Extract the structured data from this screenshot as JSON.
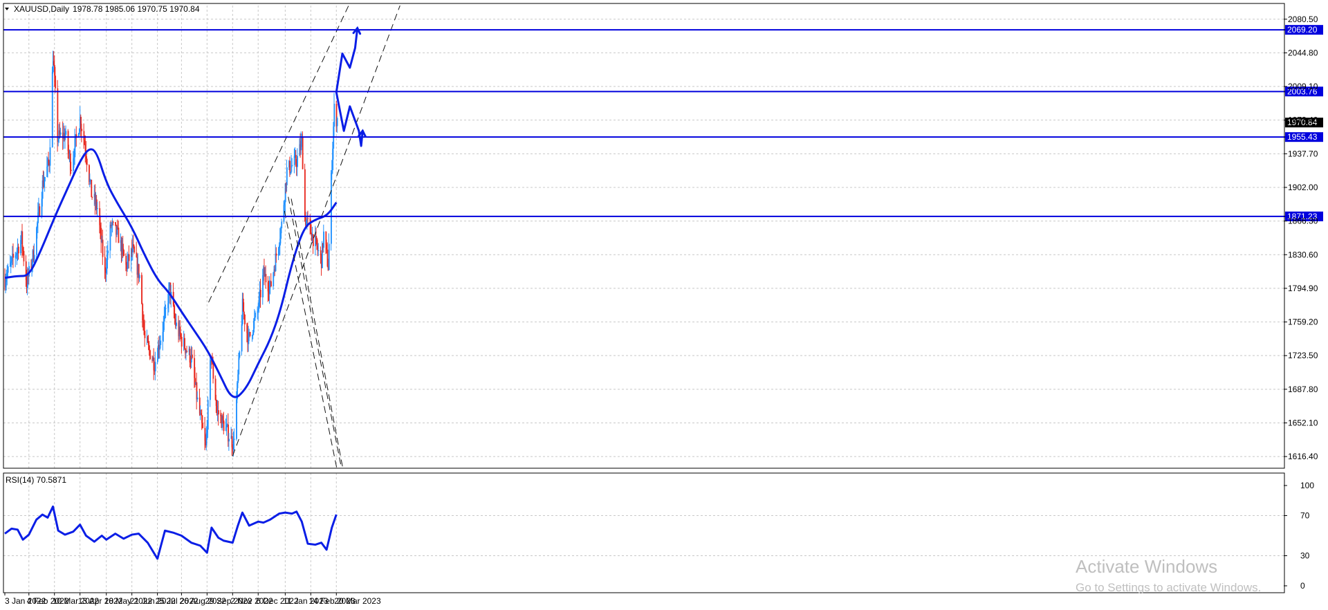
{
  "header": {
    "symbol": "XAUUSD,Daily",
    "ohlc": "1978.78 1985.06 1970.75 1970.84"
  },
  "rsi_header": "RSI(14) 70.5871",
  "watermark": {
    "line1": "Activate Windows",
    "line2": "Go to Settings to activate Windows."
  },
  "colors": {
    "bull": "#1e90ff",
    "bear": "#e8281e",
    "ma": "#0a1ee6",
    "level": "#0000dd",
    "grid": "#c8c8c8"
  },
  "chart_data": [
    {
      "type": "candlestick",
      "title": "XAUUSD,Daily",
      "y_ticks": [
        2080.5,
        2044.8,
        2009.1,
        1973.4,
        1937.7,
        1902.0,
        1866.3,
        1830.6,
        1794.9,
        1759.2,
        1723.5,
        1687.8,
        1652.1,
        1616.4
      ],
      "ylim": [
        1604.0,
        2095.0
      ],
      "x_ticks": [
        "3 Jan 2022",
        "4 Feb 2022",
        "10 Mar 2022",
        "13 Apr 2022",
        "18 May 2022",
        "21 Jun 2022",
        "25 Jul 2022",
        "26 Aug 2022",
        "29 Sep 2022",
        "2 Nov 2022",
        "6 Dec 2022",
        "11 Jan 2023",
        "14 Feb 2023",
        "20 Mar 2023"
      ],
      "x_range": [
        "2022-01-03",
        "2023-05-10"
      ],
      "grid": true,
      "price_levels": [
        {
          "label": "2069.20",
          "value": 2069.2
        },
        {
          "label": "2003.76",
          "value": 2003.76
        },
        {
          "label": "1955.43",
          "value": 1955.43
        },
        {
          "label": "1871.23",
          "value": 1871.23
        }
      ],
      "current_price": {
        "label": "1970.84",
        "value": 1970.84
      },
      "ma_series": [
        [
          "2022-01-03",
          1806
        ],
        [
          "2022-01-20",
          1808
        ],
        [
          "2022-02-04",
          1808
        ],
        [
          "2022-02-20",
          1835
        ],
        [
          "2022-03-10",
          1870
        ],
        [
          "2022-03-28",
          1902
        ],
        [
          "2022-04-13",
          1930
        ],
        [
          "2022-04-25",
          1944
        ],
        [
          "2022-05-05",
          1940
        ],
        [
          "2022-05-18",
          1907
        ],
        [
          "2022-06-01",
          1886
        ],
        [
          "2022-06-21",
          1860
        ],
        [
          "2022-07-08",
          1830
        ],
        [
          "2022-07-25",
          1804
        ],
        [
          "2022-08-10",
          1790
        ],
        [
          "2022-08-26",
          1770
        ],
        [
          "2022-09-12",
          1750
        ],
        [
          "2022-09-29",
          1730
        ],
        [
          "2022-10-15",
          1705
        ],
        [
          "2022-11-02",
          1675
        ],
        [
          "2022-11-20",
          1688
        ],
        [
          "2022-12-06",
          1715
        ],
        [
          "2022-12-22",
          1740
        ],
        [
          "2023-01-05",
          1772
        ],
        [
          "2023-01-20",
          1822
        ],
        [
          "2023-02-05",
          1860
        ],
        [
          "2023-02-20",
          1868
        ],
        [
          "2023-03-08",
          1872
        ],
        [
          "2023-03-20",
          1886
        ]
      ],
      "trend_lines": [
        {
          "from": [
            "2022-10-01",
            1780
          ],
          "to": [
            "2023-05-15",
            2162
          ]
        },
        {
          "from": [
            "2022-11-02",
            1617
          ],
          "to": [
            "2023-06-15",
            2100
          ]
        },
        {
          "from": [
            "2023-01-10",
            1877
          ],
          "to": [
            "2023-04-25",
            1465
          ]
        },
        {
          "from": [
            "2023-01-15",
            1892
          ],
          "to": [
            "2023-04-30",
            1465
          ]
        },
        {
          "from": [
            "2023-01-19",
            1890
          ],
          "to": [
            "2023-05-01",
            1465
          ]
        }
      ],
      "projection_paths": [
        [
          [
            "2023-03-20",
            2003
          ],
          [
            "2023-03-28",
            2044
          ],
          [
            "2023-04-07",
            2029
          ],
          [
            "2023-04-14",
            2050
          ],
          [
            "2023-04-17",
            2071
          ]
        ],
        [
          [
            "2023-03-20",
            2003
          ],
          [
            "2023-03-30",
            1962
          ],
          [
            "2023-04-07",
            1988
          ],
          [
            "2023-04-19",
            1962
          ],
          [
            "2023-04-22",
            1946
          ],
          [
            "2023-04-24",
            1962
          ]
        ]
      ]
    },
    {
      "type": "line",
      "title": "RSI(14) 70.5871",
      "y_ticks": [
        100,
        70,
        30,
        0
      ],
      "ylim": [
        0,
        100
      ],
      "grid": true,
      "x": [
        "2022-01-03",
        "2022-01-12",
        "2022-01-20",
        "2022-01-27",
        "2022-02-04",
        "2022-02-14",
        "2022-02-22",
        "2022-03-01",
        "2022-03-08",
        "2022-03-15",
        "2022-03-24",
        "2022-04-04",
        "2022-04-13",
        "2022-04-21",
        "2022-05-02",
        "2022-05-12",
        "2022-05-18",
        "2022-05-30",
        "2022-06-10",
        "2022-06-21",
        "2022-06-30",
        "2022-07-12",
        "2022-07-25",
        "2022-08-04",
        "2022-08-15",
        "2022-08-26",
        "2022-09-08",
        "2022-09-20",
        "2022-09-29",
        "2022-10-05",
        "2022-10-14",
        "2022-10-21",
        "2022-11-02",
        "2022-11-09",
        "2022-11-15",
        "2022-11-24",
        "2022-12-06",
        "2022-12-13",
        "2022-12-22",
        "2023-01-03",
        "2023-01-11",
        "2023-01-20",
        "2023-01-26",
        "2023-02-02",
        "2023-02-10",
        "2023-02-20",
        "2023-02-28",
        "2023-03-07",
        "2023-03-14",
        "2023-03-20"
      ],
      "values": [
        52,
        57,
        56,
        46,
        51,
        66,
        71,
        68,
        79,
        55,
        51,
        54,
        61,
        50,
        44,
        50,
        46,
        52,
        47,
        51,
        52,
        43,
        27,
        55,
        53,
        50,
        43,
        40,
        33,
        58,
        48,
        45,
        43,
        60,
        73,
        60,
        64,
        63,
        66,
        72,
        73,
        72,
        74,
        64,
        42,
        41,
        43,
        36,
        58,
        71
      ]
    }
  ]
}
